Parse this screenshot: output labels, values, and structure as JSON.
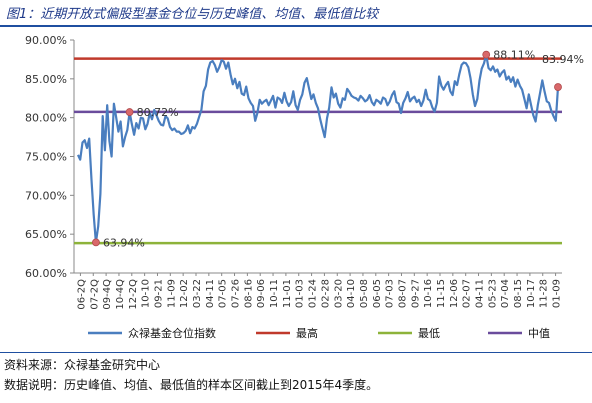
{
  "figure": {
    "title": "图1：近期开放式偏股型基金仓位与历史峰值、均值、最低值比较",
    "source": "资料来源：众禄基金研究中心",
    "note": "数据说明：历史峰值、均值、最低值的样本区间截止到2015年4季度。"
  },
  "colors": {
    "series": "#4a7ebf",
    "max_line": "#c0392b",
    "min_line": "#8db33a",
    "mid_line": "#6a4c9c",
    "marker": "#d9686a"
  },
  "chart_data": {
    "type": "line",
    "title": "",
    "xlabel": "",
    "ylabel": "",
    "ylim": [
      60,
      90
    ],
    "yticks": [
      60,
      65,
      70,
      75,
      80,
      85,
      90
    ],
    "ytick_labels": [
      "60.00%",
      "65.00%",
      "70.00%",
      "75.00%",
      "80.00%",
      "85.00%",
      "90.00%"
    ],
    "x_labels": [
      "06-2Q",
      "07-2Q",
      "09-4Q",
      "10-4Q",
      "12-2Q",
      "10-10",
      "09-21",
      "11-09",
      "12-02",
      "03-22",
      "04-11",
      "07-05",
      "07-26",
      "08-16",
      "09-06",
      "10-11",
      "11-01",
      "01-03",
      "01-24",
      "02-28",
      "03-20",
      "04-10",
      "05-08",
      "06-05",
      "07-03",
      "08-07",
      "09-27",
      "10-16",
      "11-15",
      "12-06",
      "02-07",
      "04-11",
      "05-23",
      "07-04",
      "08-15",
      "10-17",
      "11-28",
      "01-09"
    ],
    "series": [
      {
        "name": "众禄基金仓位指数",
        "values": [
          75.2,
          74.6,
          76.8,
          77.1,
          76.1,
          77.3,
          72.0,
          67.5,
          63.94,
          66.0,
          70.2,
          80.2,
          75.8,
          81.6,
          77.0,
          75.0,
          81.8,
          80.1,
          78.2,
          79.5,
          76.3,
          77.5,
          78.4,
          80.72,
          79.2,
          77.8,
          79.3,
          78.6,
          80.0,
          79.9,
          78.5,
          79.2,
          80.6,
          79.8,
          81.0,
          80.3,
          79.6,
          79.1,
          79.0,
          80.2,
          79.9,
          78.8,
          78.4,
          78.6,
          78.2,
          78.2,
          77.9,
          78.0,
          78.3,
          79.0,
          78.0,
          78.8,
          78.6,
          79.2,
          80.1,
          81.0,
          83.4,
          84.1,
          86.2,
          87.1,
          87.3,
          86.8,
          85.9,
          86.5,
          87.4,
          87.2,
          86.3,
          87.1,
          85.6,
          84.3,
          85.0,
          83.8,
          84.6,
          83.1,
          82.9,
          84.0,
          82.5,
          81.9,
          81.5,
          79.6,
          80.6,
          82.3,
          81.8,
          82.1,
          82.3,
          81.6,
          82.2,
          82.8,
          81.3,
          82.6,
          82.4,
          81.9,
          83.2,
          82.1,
          81.5,
          82.0,
          83.4,
          81.6,
          81.0,
          82.3,
          83.0,
          84.5,
          85.1,
          83.8,
          82.4,
          83.0,
          81.9,
          81.2,
          79.8,
          78.6,
          77.5,
          79.9,
          81.3,
          83.9,
          82.6,
          83.1,
          81.8,
          81.3,
          82.5,
          82.3,
          83.7,
          83.3,
          82.8,
          82.6,
          82.5,
          82.2,
          82.8,
          82.5,
          82.1,
          82.3,
          82.9,
          82.0,
          81.6,
          82.3,
          82.1,
          81.8,
          82.6,
          82.4,
          81.6,
          82.1,
          82.9,
          83.4,
          82.0,
          81.8,
          80.6,
          81.9,
          82.5,
          83.3,
          82.1,
          82.5,
          82.7,
          82.0,
          82.3,
          81.5,
          82.2,
          83.6,
          82.4,
          82.2,
          81.3,
          80.8,
          81.9,
          85.3,
          84.1,
          83.6,
          84.2,
          84.6,
          83.4,
          82.9,
          84.7,
          84.2,
          85.6,
          86.8,
          87.1,
          87.0,
          86.5,
          85.1,
          83.0,
          81.5,
          82.4,
          84.8,
          86.3,
          87.0,
          88.11,
          86.4,
          86.1,
          86.6,
          85.9,
          86.2,
          85.3,
          85.8,
          86.1,
          84.9,
          85.3,
          84.6,
          85.2,
          84.0,
          84.9,
          84.1,
          83.6,
          82.4,
          81.2,
          83.0,
          81.6,
          80.3,
          79.5,
          81.6,
          83.2,
          84.8,
          83.4,
          82.1,
          81.9,
          80.9,
          80.2,
          79.6,
          83.94
        ]
      }
    ],
    "reference_lines": [
      {
        "name": "最高",
        "value": 87.6,
        "color": "#c0392b"
      },
      {
        "name": "最低",
        "value": 63.85,
        "color": "#8db33a"
      },
      {
        "name": "中值",
        "value": 80.75,
        "color": "#6a4c9c"
      }
    ],
    "annotations": [
      {
        "label": "63.94%",
        "value": 63.94
      },
      {
        "label": "80.72%",
        "value": 80.72
      },
      {
        "label": "88.11%",
        "value": 88.11
      },
      {
        "label": "83.94%",
        "value": 83.94
      }
    ],
    "legend": {
      "position": "bottom",
      "items": [
        "众禄基金仓位指数",
        "最高",
        "最低",
        "中值"
      ]
    },
    "grid": false
  }
}
